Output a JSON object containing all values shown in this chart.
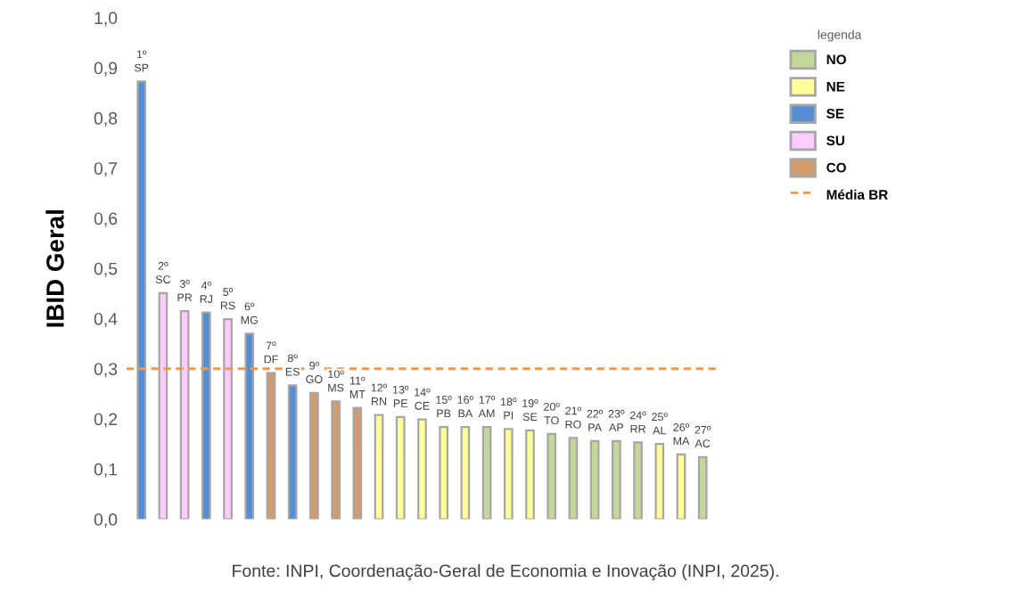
{
  "chart_data": {
    "type": "bar",
    "ylabel": "IBID Geral",
    "legend_title": "legenda",
    "legend": "right",
    "grid": false,
    "tick_labels": "y",
    "categories": [
      "1º\nSP",
      "2º\nSC",
      "3º\nPR",
      "4º\nRJ",
      "5º\nRS",
      "6º\nMG",
      "7º\nDF",
      "8º\nES",
      "9º\nGO",
      "10º\nMS",
      "11º\nMT",
      "12º\nRN",
      "13º\nPE",
      "14º\nCE",
      "15º\nPB",
      "16º\nBA",
      "17º\nAM",
      "18º\nPI",
      "19º\nSE",
      "20º\nTO",
      "21º\nRO",
      "22º\nPA",
      "23º\nAP",
      "24º\nRR",
      "25º\nAL",
      "26º\nMA",
      "27º\nAC"
    ],
    "series": [
      {
        "name": "NO",
        "color": "#c4d79b",
        "values": [
          null,
          null,
          null,
          null,
          null,
          null,
          null,
          null,
          null,
          null,
          null,
          null,
          null,
          null,
          null,
          null,
          0.184,
          null,
          null,
          0.17,
          0.162,
          0.156,
          0.156,
          0.153,
          null,
          null,
          0.124
        ]
      },
      {
        "name": "NE",
        "color": "#ffff99",
        "values": [
          null,
          null,
          null,
          null,
          null,
          null,
          null,
          null,
          null,
          null,
          null,
          0.208,
          0.204,
          0.199,
          0.184,
          0.184,
          null,
          0.18,
          0.177,
          null,
          null,
          null,
          null,
          null,
          0.15,
          0.129,
          null
        ]
      },
      {
        "name": "SE",
        "color": "#558ed5",
        "values": [
          0.873,
          null,
          null,
          0.412,
          null,
          0.37,
          null,
          0.267,
          null,
          null,
          null,
          null,
          null,
          null,
          null,
          null,
          null,
          null,
          null,
          null,
          null,
          null,
          null,
          null,
          null,
          null,
          null
        ]
      },
      {
        "name": "SU",
        "color": "#ffccff",
        "values": [
          null,
          0.451,
          0.415,
          null,
          0.399,
          null,
          null,
          null,
          null,
          null,
          null,
          null,
          null,
          null,
          null,
          null,
          null,
          null,
          null,
          null,
          null,
          null,
          null,
          null,
          null,
          null,
          null
        ]
      },
      {
        "name": "CO",
        "color": "#d29b6c",
        "values": [
          null,
          null,
          null,
          null,
          null,
          null,
          0.292,
          null,
          0.252,
          0.235,
          0.222,
          null,
          null,
          null,
          null,
          null,
          null,
          null,
          null,
          null,
          null,
          null,
          null,
          null,
          null,
          null,
          null
        ]
      }
    ],
    "ylim": [
      0,
      1.0
    ],
    "yticks": [
      {
        "value": 0,
        "label": "0,0"
      },
      {
        "value": 0.1,
        "label": "0,1"
      },
      {
        "value": 0.2,
        "label": "0,2"
      },
      {
        "value": 0.3,
        "label": "0,3"
      },
      {
        "value": 0.4,
        "label": "0,4"
      },
      {
        "value": 0.5,
        "label": "0,5"
      },
      {
        "value": 0.6,
        "label": "0,6"
      },
      {
        "value": 0.7,
        "label": "0,7"
      },
      {
        "value": 0.8,
        "label": "0,8"
      },
      {
        "value": 0.9,
        "label": "0,9"
      },
      {
        "value": 1.0,
        "label": "1,0"
      }
    ],
    "ref_lines": [
      {
        "axis": "y",
        "value": 0.3,
        "label": "Média BR",
        "color": "#f79646",
        "line_style": "dashed"
      }
    ],
    "annotations": [
      "Fonte: INPI, Coordenação-Geral de Economia e Inovação (INPI, 2025)."
    ]
  }
}
